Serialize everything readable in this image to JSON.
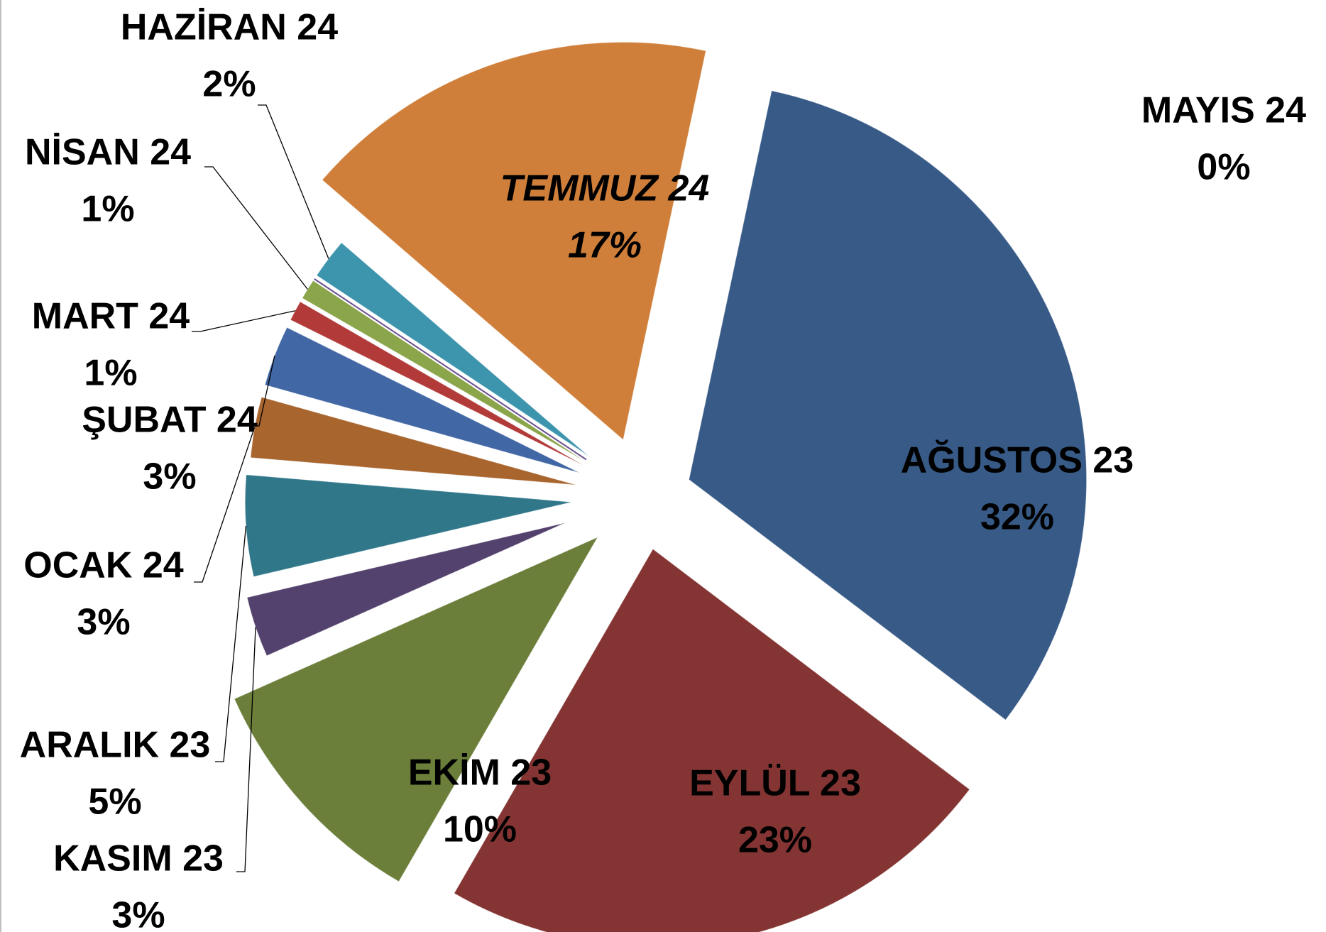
{
  "chart_data": {
    "type": "pie",
    "categories": [
      "AĞUSTOS 23",
      "EYLÜL 23",
      "EKİM 23",
      "KASIM 23",
      "ARALIK 23",
      "OCAK 24",
      "ŞUBAT 24",
      "MART 24",
      "NİSAN 24",
      "MAYIS 24",
      "HAZİRAN 24",
      "TEMMUZ 24"
    ],
    "values": [
      32,
      23,
      10,
      3,
      5,
      3,
      3,
      1,
      1,
      0,
      2,
      17
    ],
    "value_labels": [
      "32%",
      "23%",
      "10%",
      "3%",
      "5%",
      "3%",
      "3%",
      "1%",
      "1%",
      "0%",
      "2%",
      "17%"
    ],
    "colors": [
      "#375a87",
      "#843533",
      "#6b7f3a",
      "#54426e",
      "#31778a",
      "#a8652e",
      "#4167a5",
      "#b23b3a",
      "#8aa54a",
      "#6a4e8e",
      "#3d94ad",
      "#d07f3a"
    ],
    "highlight": {
      "index": 11,
      "color": "#ff0000"
    }
  }
}
